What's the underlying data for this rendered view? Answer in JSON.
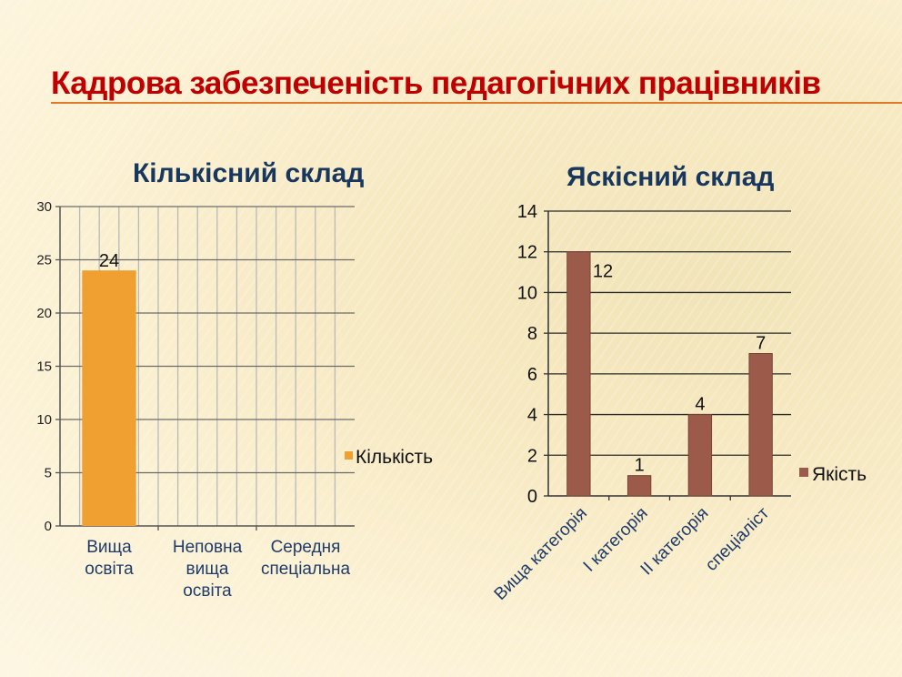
{
  "page_title": "Кадрова забезпеченість педагогічних працівників",
  "chart_data": [
    {
      "type": "bar",
      "title": "Кількісний склад",
      "categories": [
        "Вища освіта",
        "Неповна вища освіта",
        "Середня спеціальна"
      ],
      "category_lines": [
        [
          "Вища",
          "освіта"
        ],
        [
          "Неповна",
          "вища",
          "освіта"
        ],
        [
          "Середня",
          "спеціальна"
        ]
      ],
      "series": [
        {
          "name": "Кількість",
          "values": [
            24,
            null,
            null
          ],
          "color": "#f0a030"
        }
      ],
      "data_labels": [
        "24",
        "",
        ""
      ],
      "y_ticks": [
        "0",
        "5",
        "10",
        "15",
        "20",
        "25",
        "30"
      ],
      "ylim": [
        0,
        30
      ],
      "grid": "both",
      "legend": "right"
    },
    {
      "type": "bar",
      "title": "Яскісний склад",
      "categories": [
        "Вища категорія",
        "I категорія",
        "II категорія",
        "спеціаліст"
      ],
      "series": [
        {
          "name": "Якість",
          "values": [
            12,
            1,
            4,
            7
          ],
          "color": "#9b5a4a"
        }
      ],
      "data_labels": [
        "12",
        "1",
        "4",
        "7"
      ],
      "y_ticks": [
        "0",
        "2",
        "4",
        "6",
        "8",
        "10",
        "12",
        "14"
      ],
      "ylim": [
        0,
        14
      ],
      "grid": "horizontal",
      "legend": "right"
    }
  ]
}
